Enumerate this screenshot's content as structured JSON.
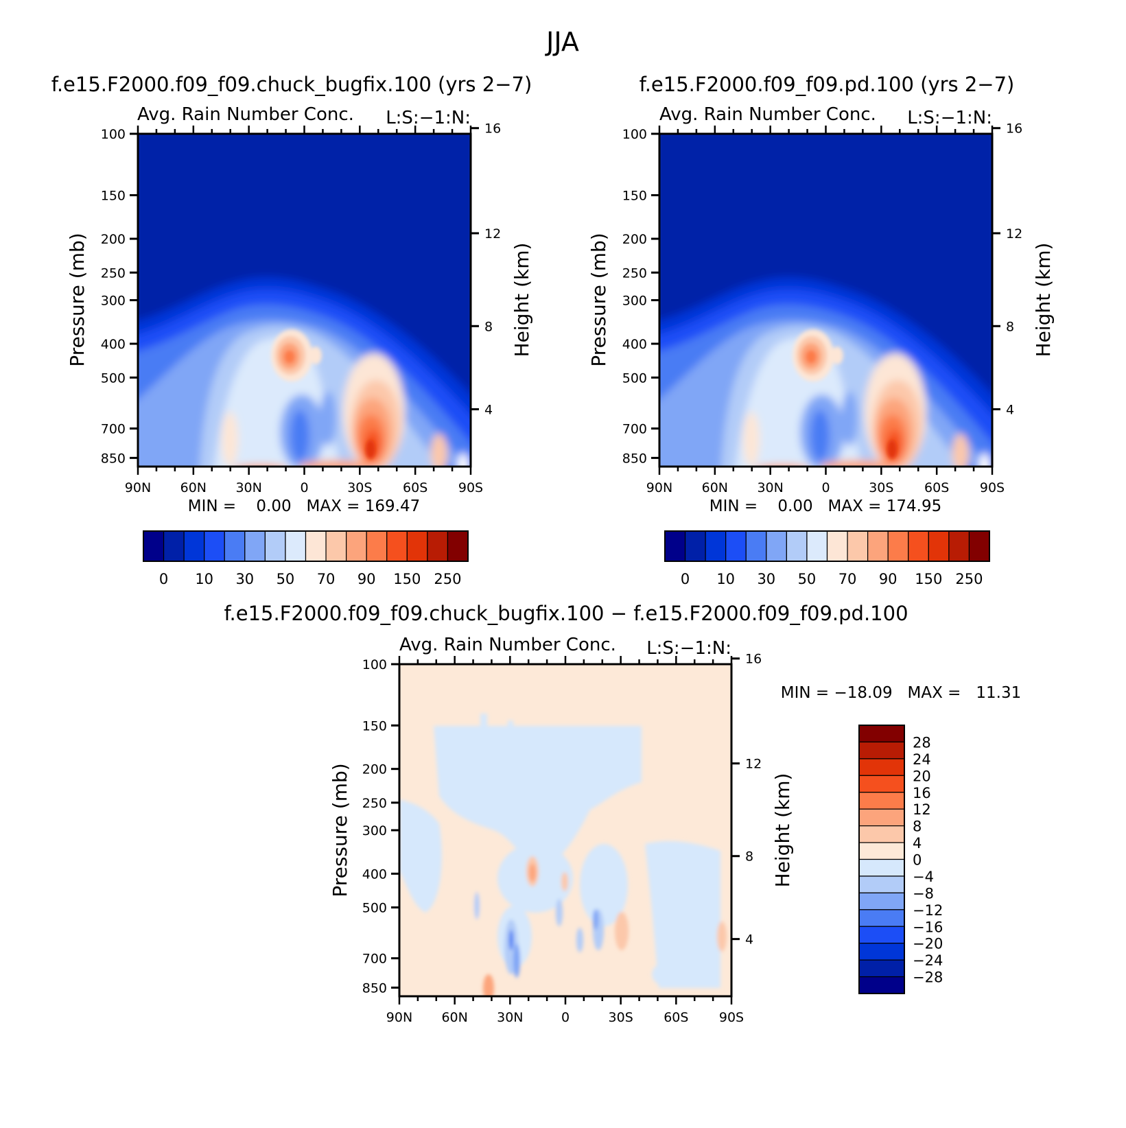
{
  "figure": {
    "main_title": "JJA",
    "panels": [
      {
        "run_title": "f.e15.F2000.f09_f09.chuck_bugfix.100 (yrs 2−7)",
        "var_title": "Avg. Rain Number Conc.",
        "units_label": "L:S:−1:N:",
        "ylabel_left": "Pressure (mb)",
        "ylabel_right": "Height (km)",
        "min_max": "MIN =    0.00   MAX = 169.47",
        "colorbar_labels": [
          "0",
          "10",
          "30",
          "50",
          "70",
          "90",
          "150",
          "250"
        ]
      },
      {
        "run_title": "f.e15.F2000.f09_f09.pd.100 (yrs 2−7)",
        "var_title": "Avg. Rain Number Conc.",
        "units_label": "L:S:−1:N:",
        "ylabel_left": "Pressure (mb)",
        "ylabel_right": "Height (km)",
        "min_max": "MIN =    0.00   MAX = 174.95",
        "colorbar_labels": [
          "0",
          "10",
          "30",
          "50",
          "70",
          "90",
          "150",
          "250"
        ]
      },
      {
        "run_title": "f.e15.F2000.f09_f09.chuck_bugfix.100 − f.e15.F2000.f09_f09.pd.100",
        "var_title": "Avg. Rain Number Conc.",
        "units_label": "L:S:−1:N:",
        "ylabel_left": "Pressure (mb)",
        "ylabel_right": "Height (km)",
        "min_max": "MIN = −18.09   MAX =   11.31",
        "colorbar_labels": [
          "28",
          "24",
          "20",
          "16",
          "12",
          "8",
          "4",
          "0",
          "−4",
          "−8",
          "−12",
          "−16",
          "−20",
          "−24",
          "−28"
        ]
      }
    ],
    "abs_colors": [
      "#00008a",
      "#0020a8",
      "#0036d8",
      "#1c4ef6",
      "#4a7cf4",
      "#80a6f6",
      "#b2ccf8",
      "#dceafc",
      "#fde6d6",
      "#fcc8aa",
      "#fca47c",
      "#fc7c4a",
      "#f5501e",
      "#e23408",
      "#b81c04",
      "#820000"
    ],
    "diff_colors": [
      "#820000",
      "#b81c04",
      "#e23408",
      "#f5501e",
      "#fc7c4a",
      "#fca47c",
      "#fcc8aa",
      "#fde9d8",
      "#d6e8fc",
      "#b2ccf8",
      "#80a6f6",
      "#4a7cf4",
      "#1c4ef6",
      "#0036d8",
      "#0020a8",
      "#00008a"
    ]
  },
  "chart_data": [
    {
      "type": "heatmap",
      "title": "f.e15.F2000.f09_f09.chuck_bugfix.100 (yrs 2−7)",
      "subtitle": "Avg. Rain Number Conc.",
      "x": [
        "90N",
        "60N",
        "30N",
        "0",
        "30S",
        "60S",
        "90S"
      ],
      "y_pressure_ticks": [
        100,
        150,
        200,
        250,
        300,
        400,
        500,
        700,
        850
      ],
      "y_height_ticks": [
        16,
        12,
        8,
        4
      ],
      "xlabel": "",
      "ylabel": "Pressure (mb)",
      "ylabel_right": "Height (km)",
      "ylim": [
        900,
        100
      ],
      "min": 0.0,
      "max": 169.47,
      "levels": [
        0,
        10,
        30,
        50,
        70,
        90,
        150,
        250
      ]
    },
    {
      "type": "heatmap",
      "title": "f.e15.F2000.f09_f09.pd.100 (yrs 2−7)",
      "subtitle": "Avg. Rain Number Conc.",
      "x": [
        "90N",
        "60N",
        "30N",
        "0",
        "30S",
        "60S",
        "90S"
      ],
      "y_pressure_ticks": [
        100,
        150,
        200,
        250,
        300,
        400,
        500,
        700,
        850
      ],
      "y_height_ticks": [
        16,
        12,
        8,
        4
      ],
      "xlabel": "",
      "ylabel": "Pressure (mb)",
      "ylabel_right": "Height (km)",
      "ylim": [
        900,
        100
      ],
      "min": 0.0,
      "max": 174.95,
      "levels": [
        0,
        10,
        30,
        50,
        70,
        90,
        150,
        250
      ]
    },
    {
      "type": "heatmap",
      "title": "f.e15.F2000.f09_f09.chuck_bugfix.100 − f.e15.F2000.f09_f09.pd.100",
      "subtitle": "Avg. Rain Number Conc.",
      "x": [
        "90N",
        "60N",
        "30N",
        "0",
        "30S",
        "60S",
        "90S"
      ],
      "y_pressure_ticks": [
        100,
        150,
        200,
        250,
        300,
        400,
        500,
        700,
        850
      ],
      "y_height_ticks": [
        16,
        12,
        8,
        4
      ],
      "xlabel": "",
      "ylabel": "Pressure (mb)",
      "ylabel_right": "Height (km)",
      "ylim": [
        900,
        100
      ],
      "min": -18.09,
      "max": 11.31,
      "levels": [
        -28,
        -24,
        -20,
        -16,
        -12,
        -8,
        -4,
        0,
        4,
        8,
        12,
        16,
        20,
        24,
        28
      ]
    }
  ]
}
